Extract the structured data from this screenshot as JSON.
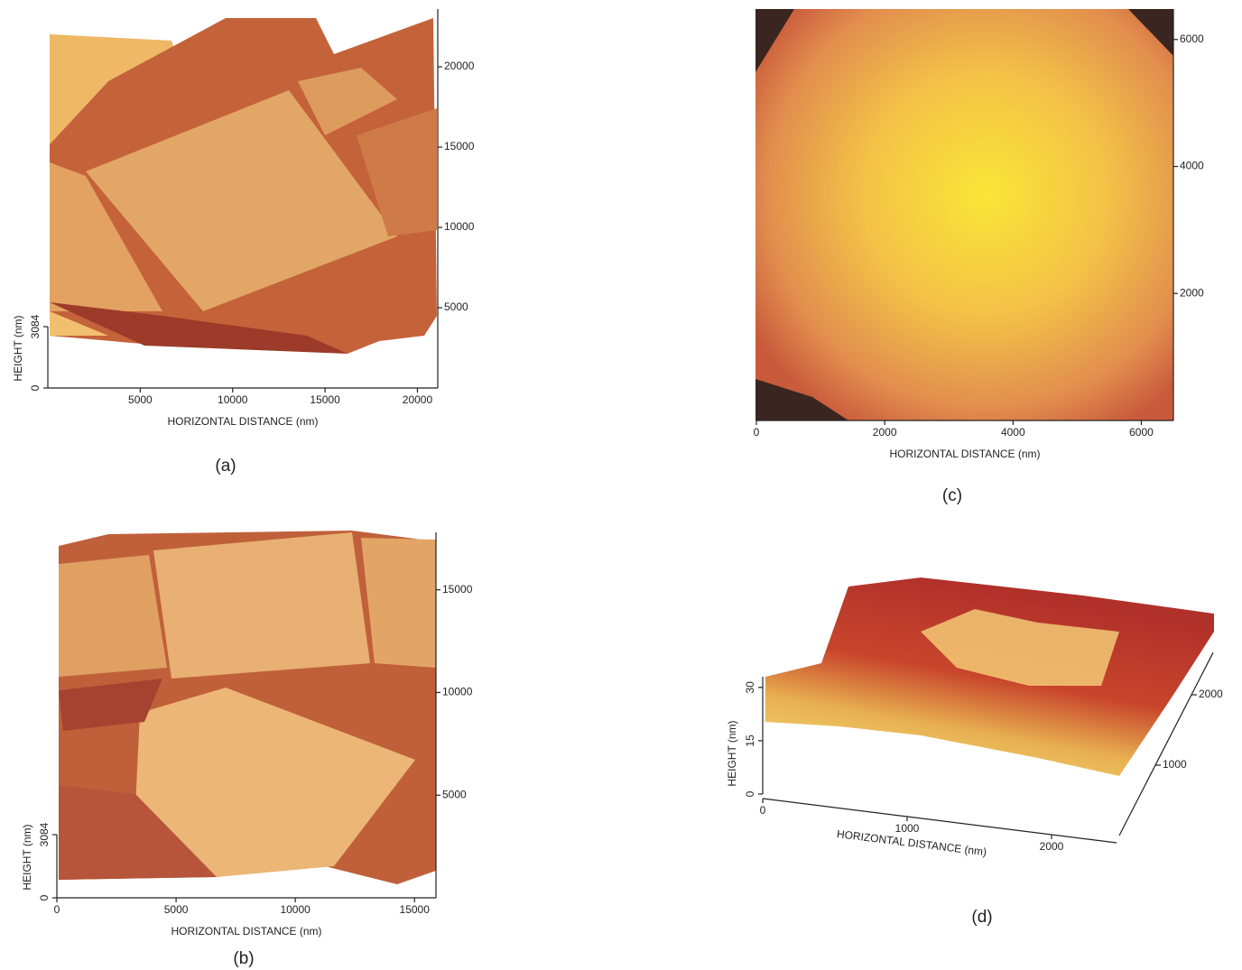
{
  "panels": [
    {
      "label": "(a)",
      "x_axis_title": "HORIZONTAL DISTANCE (nm)",
      "height_axis_title": "HEIGHT (nm)",
      "xlim": [
        0,
        21100
      ],
      "xticks": [
        5000,
        10000,
        15000,
        20000
      ],
      "ylim": [
        0,
        23600
      ],
      "yticks": [
        5000,
        10000,
        15000,
        20000
      ],
      "zlim": [
        0,
        3084
      ],
      "zticks": [
        0,
        3084
      ]
    },
    {
      "label": "(b)",
      "x_axis_title": "HORIZONTAL DISTANCE (nm)",
      "height_axis_title": "HEIGHT (nm)",
      "xlim": [
        0,
        15900
      ],
      "xticks": [
        0,
        5000,
        10000,
        15000
      ],
      "ylim": [
        0,
        17800
      ],
      "yticks": [
        5000,
        10000,
        15000
      ],
      "zlim": [
        0,
        3084
      ],
      "zticks": [
        0,
        3084
      ]
    },
    {
      "label": "(c)",
      "x_axis_title": "HORIZONTAL DISTANCE (nm)",
      "xlim": [
        0,
        6500
      ],
      "xticks": [
        0,
        2000,
        4000,
        6000
      ],
      "ylim": [
        0,
        6480
      ],
      "yticks": [
        2000,
        4000,
        6000
      ]
    },
    {
      "label": "(d)",
      "x_axis_title": "HORIZONTAL DISTANCE (nm)",
      "height_axis_title": "HEIGHT (nm)",
      "xlim": [
        0,
        2450
      ],
      "xticks": [
        0,
        1000,
        2000
      ],
      "ylim": [
        0,
        2600
      ],
      "yticks": [
        1000,
        2000
      ],
      "zlim": [
        0,
        33
      ],
      "zticks": [
        0,
        15,
        30
      ]
    }
  ]
}
